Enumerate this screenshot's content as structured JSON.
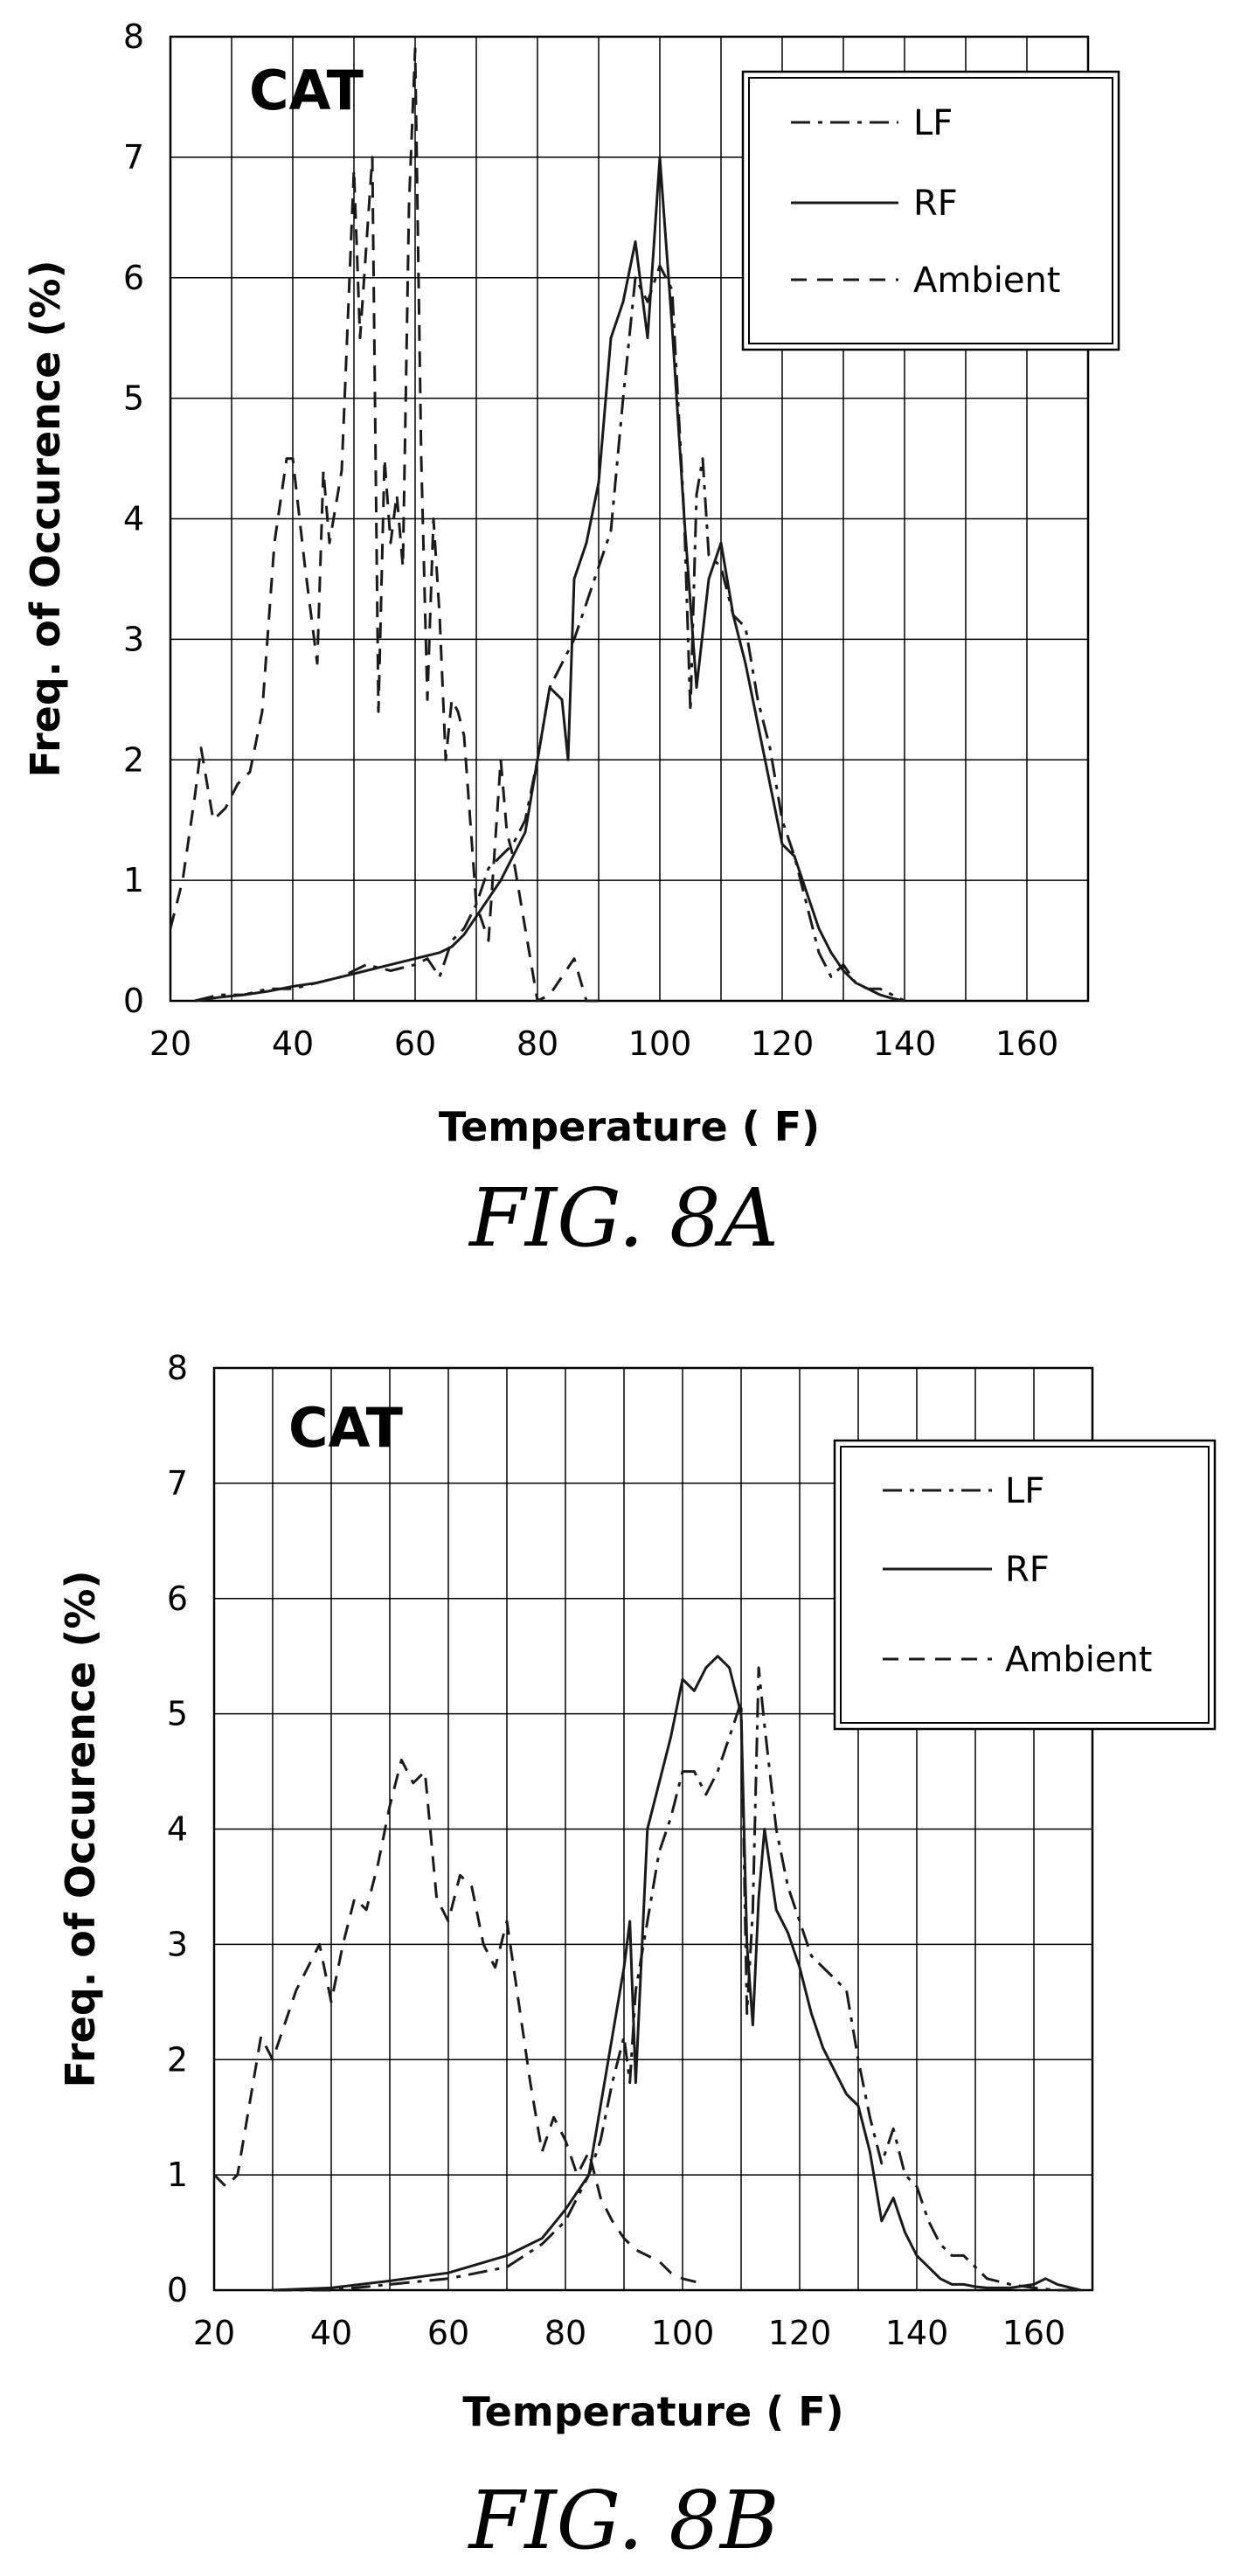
{
  "chart_data": [
    {
      "type": "line",
      "panel_label": "CAT",
      "caption": "FIG. 8A",
      "xlabel": "Temperature ( F)",
      "ylabel": "Freq. of Occurence (%)",
      "xlim": [
        20,
        170
      ],
      "ylim": [
        0,
        8
      ],
      "xticks": [
        20,
        40,
        60,
        80,
        100,
        120,
        140,
        160
      ],
      "yticks": [
        0,
        1,
        2,
        3,
        4,
        5,
        6,
        7,
        8
      ],
      "grid": true,
      "legend_position": "top-right",
      "series": [
        {
          "name": "LF",
          "style": "dash-dot",
          "x": [
            24,
            28,
            32,
            36,
            40,
            44,
            48,
            52,
            56,
            60,
            62,
            64,
            66,
            68,
            70,
            72,
            74,
            76,
            78,
            80,
            82,
            84,
            86,
            88,
            90,
            92,
            94,
            96,
            98,
            100,
            102,
            104,
            105,
            106,
            107,
            108,
            110,
            112,
            114,
            116,
            118,
            120,
            122,
            124,
            126,
            128,
            130,
            132,
            134,
            136,
            138,
            140
          ],
          "y": [
            0,
            0.05,
            0.05,
            0.1,
            0.1,
            0.15,
            0.2,
            0.3,
            0.25,
            0.3,
            0.35,
            0.2,
            0.5,
            0.6,
            0.8,
            1.1,
            1.2,
            1.3,
            1.5,
            2.0,
            2.6,
            2.8,
            3.0,
            3.3,
            3.6,
            3.9,
            5.0,
            6.0,
            5.8,
            6.1,
            5.9,
            4.0,
            2.4,
            4.2,
            4.5,
            3.7,
            3.6,
            3.2,
            3.1,
            2.5,
            2.1,
            1.5,
            1.2,
            0.8,
            0.4,
            0.2,
            0.3,
            0.15,
            0.1,
            0.1,
            0.05,
            0
          ]
        },
        {
          "name": "RF",
          "style": "solid",
          "x": [
            24,
            28,
            32,
            36,
            40,
            44,
            48,
            52,
            56,
            60,
            64,
            66,
            68,
            70,
            72,
            74,
            76,
            78,
            80,
            82,
            84,
            85,
            86,
            88,
            90,
            92,
            94,
            96,
            98,
            100,
            102,
            104,
            106,
            108,
            110,
            112,
            114,
            116,
            118,
            120,
            122,
            124,
            126,
            128,
            130,
            132,
            134,
            136,
            138,
            140
          ],
          "y": [
            0,
            0.03,
            0.05,
            0.08,
            0.12,
            0.15,
            0.2,
            0.25,
            0.3,
            0.35,
            0.4,
            0.45,
            0.55,
            0.7,
            0.85,
            1.0,
            1.2,
            1.4,
            2.0,
            2.6,
            2.5,
            2.0,
            3.5,
            3.8,
            4.3,
            5.5,
            5.8,
            6.3,
            5.5,
            7.0,
            5.6,
            4.0,
            2.6,
            3.5,
            3.8,
            3.2,
            2.8,
            2.3,
            1.8,
            1.3,
            1.2,
            0.9,
            0.6,
            0.4,
            0.25,
            0.15,
            0.1,
            0.05,
            0.02,
            0
          ]
        },
        {
          "name": "Ambient",
          "style": "dashed",
          "x": [
            20,
            22,
            24,
            25,
            27,
            29,
            31,
            33,
            35,
            37,
            39,
            40,
            42,
            44,
            45,
            46,
            48,
            50,
            51,
            53,
            54,
            55,
            56,
            57,
            58,
            59,
            60,
            61,
            62,
            63,
            64,
            65,
            66,
            67,
            68,
            70,
            72,
            74,
            75,
            76,
            78,
            80,
            82,
            84,
            86,
            88,
            90
          ],
          "y": [
            0.6,
            1.0,
            1.7,
            2.1,
            1.5,
            1.6,
            1.8,
            1.9,
            2.4,
            3.8,
            4.5,
            4.5,
            3.6,
            2.8,
            4.4,
            3.8,
            4.4,
            6.9,
            5.5,
            7.0,
            2.4,
            4.5,
            3.8,
            4.2,
            3.6,
            6.6,
            7.9,
            4.5,
            2.5,
            4.0,
            3.2,
            2.0,
            2.5,
            2.4,
            2.2,
            0.8,
            0.5,
            2.0,
            1.4,
            1.2,
            0.6,
            0.0,
            0.05,
            0.2,
            0.35,
            0.0,
            0.0
          ]
        }
      ]
    },
    {
      "type": "line",
      "panel_label": "CAT",
      "caption": "FIG. 8B",
      "xlabel": "Temperature ( F)",
      "ylabel": "Freq. of Occurence (%)",
      "xlim": [
        20,
        170
      ],
      "ylim": [
        0,
        8
      ],
      "xticks": [
        20,
        40,
        60,
        80,
        100,
        120,
        140,
        160
      ],
      "yticks": [
        0,
        1,
        2,
        3,
        4,
        5,
        6,
        7,
        8
      ],
      "grid": true,
      "legend_position": "top-right",
      "series": [
        {
          "name": "LF",
          "style": "dash-dot",
          "x": [
            30,
            40,
            50,
            60,
            70,
            76,
            80,
            84,
            86,
            88,
            90,
            91,
            92,
            94,
            96,
            98,
            100,
            102,
            104,
            106,
            108,
            110,
            111,
            112,
            113,
            114,
            116,
            118,
            120,
            122,
            124,
            126,
            128,
            130,
            132,
            134,
            136,
            138,
            140,
            142,
            144,
            146,
            148,
            150,
            152,
            156,
            160,
            164,
            168
          ],
          "y": [
            0,
            0,
            0.05,
            0.1,
            0.2,
            0.4,
            0.6,
            1.0,
            1.3,
            1.8,
            2.2,
            1.8,
            2.6,
            3.2,
            3.8,
            4.1,
            4.5,
            4.5,
            4.3,
            4.5,
            4.8,
            5.1,
            2.4,
            3.3,
            5.4,
            4.9,
            4.0,
            3.5,
            3.2,
            2.9,
            2.8,
            2.7,
            2.6,
            2.0,
            1.5,
            1.1,
            1.4,
            1.0,
            0.9,
            0.6,
            0.4,
            0.3,
            0.3,
            0.2,
            0.1,
            0.05,
            0.02,
            0.0,
            0.0
          ]
        },
        {
          "name": "RF",
          "style": "solid",
          "x": [
            30,
            40,
            50,
            60,
            70,
            76,
            80,
            84,
            86,
            88,
            90,
            91,
            92,
            94,
            96,
            98,
            100,
            102,
            104,
            106,
            108,
            110,
            111,
            112,
            113,
            114,
            116,
            118,
            120,
            122,
            124,
            126,
            128,
            130,
            132,
            134,
            136,
            138,
            140,
            142,
            144,
            146,
            148,
            150,
            152,
            156,
            160,
            162,
            164,
            168
          ],
          "y": [
            0,
            0.02,
            0.08,
            0.15,
            0.3,
            0.45,
            0.7,
            1.0,
            1.6,
            2.2,
            2.8,
            3.2,
            1.8,
            4.0,
            4.4,
            4.8,
            5.3,
            5.2,
            5.4,
            5.5,
            5.4,
            5.0,
            3.0,
            2.3,
            3.4,
            4.0,
            3.3,
            3.1,
            2.8,
            2.4,
            2.1,
            1.9,
            1.7,
            1.6,
            1.2,
            0.6,
            0.8,
            0.5,
            0.3,
            0.2,
            0.1,
            0.05,
            0.05,
            0.03,
            0.02,
            0.02,
            0.05,
            0.1,
            0.05,
            0.0
          ]
        },
        {
          "name": "Ambient",
          "style": "dashed",
          "x": [
            20,
            22,
            24,
            26,
            28,
            30,
            32,
            34,
            36,
            38,
            40,
            42,
            44,
            46,
            48,
            50,
            52,
            54,
            56,
            58,
            60,
            62,
            64,
            66,
            68,
            70,
            72,
            74,
            76,
            78,
            80,
            82,
            84,
            86,
            88,
            90,
            92,
            94,
            96,
            98,
            100,
            104
          ],
          "y": [
            1.0,
            0.9,
            1.0,
            1.6,
            2.2,
            2.0,
            2.3,
            2.6,
            2.8,
            3.0,
            2.5,
            3.0,
            3.4,
            3.3,
            3.7,
            4.2,
            4.6,
            4.4,
            4.5,
            3.4,
            3.2,
            3.6,
            3.5,
            3.0,
            2.8,
            3.2,
            2.5,
            1.8,
            1.2,
            1.5,
            1.3,
            1.0,
            1.2,
            0.8,
            0.6,
            0.45,
            0.35,
            0.3,
            0.25,
            0.15,
            0.1,
            0.05
          ]
        }
      ]
    }
  ],
  "styles": {
    "line_color": "#1a1a1a",
    "grid_color": "#000000",
    "background": "#ffffff"
  }
}
